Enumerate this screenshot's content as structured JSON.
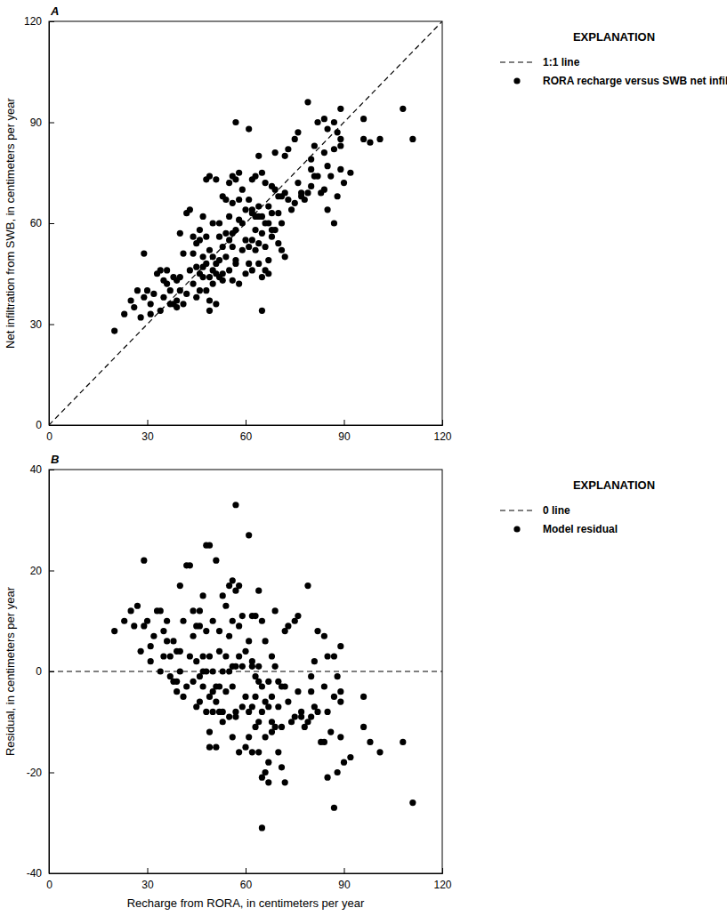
{
  "chart_data": [
    {
      "type": "scatter",
      "title": "A",
      "y_label": "Net infiltration from SWB, in centimeters per year",
      "xlim": [
        0,
        120
      ],
      "xticks": [
        0,
        30,
        60,
        90,
        120
      ],
      "ylim": [
        0,
        120
      ],
      "yticks": [
        0,
        30,
        60,
        90,
        120
      ],
      "legend": "right",
      "legend_title": "EXPLANATION",
      "series": [
        {
          "name": "1:1 line",
          "type": "line",
          "line_style": "dashed",
          "color": "#000000",
          "x": [
            0,
            120
          ],
          "values": [
            0,
            120
          ]
        },
        {
          "name": "RORA recharge versus SWB net infiltration",
          "type": "scatter",
          "marker": "circle",
          "color": "#000000",
          "x": [
            20,
            23,
            25,
            26,
            27,
            28,
            29,
            29,
            30,
            31,
            31,
            32,
            33,
            34,
            34,
            35,
            35,
            36,
            36,
            37,
            37,
            38,
            38,
            39,
            39,
            39,
            40,
            40,
            40,
            41,
            41,
            42,
            42,
            43,
            43,
            44,
            44,
            44,
            45,
            45,
            45,
            46,
            46,
            46,
            46,
            47,
            47,
            47,
            47,
            48,
            48,
            48,
            48,
            49,
            49,
            49,
            49,
            49,
            50,
            50,
            50,
            50,
            51,
            51,
            51,
            51,
            52,
            52,
            52,
            52,
            53,
            53,
            53,
            53,
            54,
            54,
            54,
            55,
            55,
            55,
            55,
            56,
            56,
            56,
            56,
            56,
            57,
            57,
            57,
            57,
            57,
            58,
            58,
            58,
            58,
            59,
            59,
            59,
            60,
            60,
            60,
            61,
            61,
            61,
            61,
            62,
            62,
            62,
            62,
            62,
            63,
            63,
            63,
            63,
            64,
            64,
            64,
            64,
            64,
            65,
            65,
            65,
            65,
            65,
            66,
            66,
            66,
            66,
            67,
            67,
            67,
            67,
            68,
            68,
            68,
            68,
            69,
            69,
            69,
            70,
            70,
            70,
            71,
            71,
            71,
            72,
            72,
            72,
            73,
            73,
            74,
            75,
            75,
            76,
            76,
            77,
            77,
            78,
            79,
            79,
            80,
            80,
            80,
            81,
            81,
            82,
            82,
            83,
            84,
            84,
            84,
            85,
            85,
            85,
            86,
            87,
            87,
            87,
            88,
            88,
            89,
            89,
            89,
            89,
            90,
            92,
            96,
            96,
            98,
            101,
            108,
            111
          ],
          "values": [
            28,
            33,
            37,
            35,
            40,
            32,
            51,
            38,
            40,
            36,
            33,
            39,
            45,
            34,
            46,
            38,
            43,
            42,
            46,
            40,
            36,
            44,
            36,
            35,
            43,
            37,
            40,
            57,
            44,
            51,
            36,
            39,
            63,
            64,
            46,
            56,
            51,
            42,
            54,
            47,
            38,
            45,
            58,
            55,
            40,
            50,
            47,
            62,
            44,
            73,
            56,
            48,
            40,
            74,
            44,
            52,
            37,
            34,
            60,
            46,
            42,
            50,
            73,
            48,
            36,
            45,
            56,
            44,
            49,
            60,
            68,
            45,
            53,
            43,
            50,
            67,
            57,
            55,
            46,
            62,
            72,
            74,
            57,
            66,
            43,
            53,
            90,
            73,
            58,
            49,
            48,
            75,
            67,
            61,
            42,
            60,
            52,
            70,
            64,
            45,
            55,
            88,
            67,
            53,
            48,
            63,
            73,
            55,
            46,
            64,
            74,
            62,
            58,
            52,
            65,
            54,
            80,
            48,
            62,
            34,
            75,
            62,
            57,
            44,
            60,
            53,
            72,
            46,
            60,
            65,
            49,
            45,
            71,
            58,
            56,
            63,
            70,
            58,
            81,
            63,
            54,
            68,
            68,
            52,
            60,
            80,
            69,
            50,
            82,
            67,
            64,
            85,
            66,
            87,
            72,
            68,
            69,
            67,
            96,
            69,
            79,
            76,
            71,
            83,
            74,
            90,
            74,
            69,
            91,
            70,
            81,
            88,
            77,
            64,
            74,
            60,
            82,
            90,
            87,
            68,
            94,
            85,
            83,
            76,
            72,
            75,
            91,
            85,
            84,
            85,
            94,
            85
          ]
        }
      ]
    },
    {
      "type": "scatter",
      "title": "B",
      "x_label": "Recharge from RORA, in centimeters per year",
      "y_label": "Residual, in centimeters per year",
      "xlim": [
        0,
        120
      ],
      "xticks": [
        0,
        30,
        60,
        90,
        120
      ],
      "ylim": [
        -40,
        40
      ],
      "yticks": [
        -40,
        -20,
        0,
        20,
        40
      ],
      "legend": "right",
      "legend_title": "EXPLANATION",
      "series": [
        {
          "name": "0 line",
          "type": "line",
          "line_style": "dashed",
          "color": "#000000",
          "x": [
            0,
            120
          ],
          "values": [
            0,
            0
          ]
        },
        {
          "name": "Model residual",
          "type": "scatter",
          "marker": "circle",
          "color": "#000000",
          "x": [
            20,
            23,
            25,
            26,
            27,
            28,
            29,
            29,
            30,
            31,
            31,
            32,
            33,
            34,
            34,
            35,
            35,
            36,
            36,
            37,
            37,
            38,
            38,
            39,
            39,
            39,
            40,
            40,
            40,
            41,
            41,
            42,
            42,
            43,
            43,
            44,
            44,
            44,
            45,
            45,
            45,
            46,
            46,
            46,
            46,
            47,
            47,
            47,
            47,
            48,
            48,
            48,
            48,
            49,
            49,
            49,
            49,
            49,
            50,
            50,
            50,
            50,
            51,
            51,
            51,
            51,
            52,
            52,
            52,
            52,
            53,
            53,
            53,
            53,
            54,
            54,
            54,
            55,
            55,
            55,
            55,
            56,
            56,
            56,
            56,
            56,
            57,
            57,
            57,
            57,
            57,
            58,
            58,
            58,
            58,
            59,
            59,
            59,
            60,
            60,
            60,
            61,
            61,
            61,
            61,
            62,
            62,
            62,
            62,
            62,
            63,
            63,
            63,
            63,
            64,
            64,
            64,
            64,
            64,
            65,
            65,
            65,
            65,
            65,
            66,
            66,
            66,
            66,
            67,
            67,
            67,
            67,
            68,
            68,
            68,
            68,
            69,
            69,
            69,
            70,
            70,
            70,
            71,
            71,
            71,
            72,
            72,
            72,
            73,
            73,
            74,
            75,
            75,
            76,
            76,
            77,
            77,
            78,
            79,
            79,
            80,
            80,
            80,
            81,
            81,
            82,
            82,
            83,
            84,
            84,
            84,
            85,
            85,
            85,
            86,
            87,
            87,
            87,
            88,
            88,
            89,
            89,
            89,
            89,
            90,
            92,
            96,
            96,
            98,
            101,
            108,
            111
          ],
          "values": [
            8,
            10,
            12,
            9,
            13,
            4,
            22,
            9,
            10,
            5,
            2,
            7,
            12,
            0,
            12,
            3,
            8,
            6,
            10,
            3,
            -1,
            6,
            -2,
            -4,
            4,
            -2,
            0,
            17,
            4,
            10,
            -5,
            -3,
            21,
            21,
            3,
            12,
            7,
            -2,
            9,
            2,
            -7,
            -1,
            12,
            9,
            -6,
            3,
            0,
            15,
            -3,
            25,
            8,
            0,
            -8,
            25,
            -5,
            3,
            -12,
            -15,
            10,
            -4,
            -8,
            0,
            22,
            -3,
            -15,
            -6,
            4,
            -8,
            -3,
            8,
            15,
            -8,
            0,
            -10,
            -4,
            13,
            3,
            0,
            -9,
            7,
            17,
            18,
            1,
            10,
            -13,
            -3,
            33,
            16,
            1,
            -8,
            -9,
            17,
            9,
            3,
            -16,
            1,
            -7,
            11,
            4,
            -15,
            -5,
            27,
            6,
            -8,
            -13,
            1,
            11,
            -7,
            -16,
            2,
            11,
            -1,
            -5,
            -11,
            1,
            -10,
            16,
            -16,
            -2,
            -31,
            10,
            -3,
            -8,
            -21,
            -6,
            -13,
            6,
            -20,
            -7,
            -2,
            -18,
            -22,
            3,
            -10,
            -12,
            -5,
            1,
            -11,
            12,
            -7,
            -16,
            -2,
            -3,
            -19,
            -11,
            8,
            -3,
            -22,
            9,
            -6,
            -10,
            10,
            -9,
            11,
            -4,
            -9,
            -8,
            -11,
            17,
            -10,
            -1,
            -4,
            -9,
            2,
            -7,
            8,
            -8,
            -14,
            7,
            -14,
            -3,
            3,
            -8,
            -21,
            -12,
            -27,
            -5,
            3,
            -1,
            -20,
            5,
            -4,
            -6,
            -13,
            -18,
            -17,
            -5,
            -11,
            -14,
            -16,
            -14,
            -26
          ]
        }
      ]
    }
  ]
}
